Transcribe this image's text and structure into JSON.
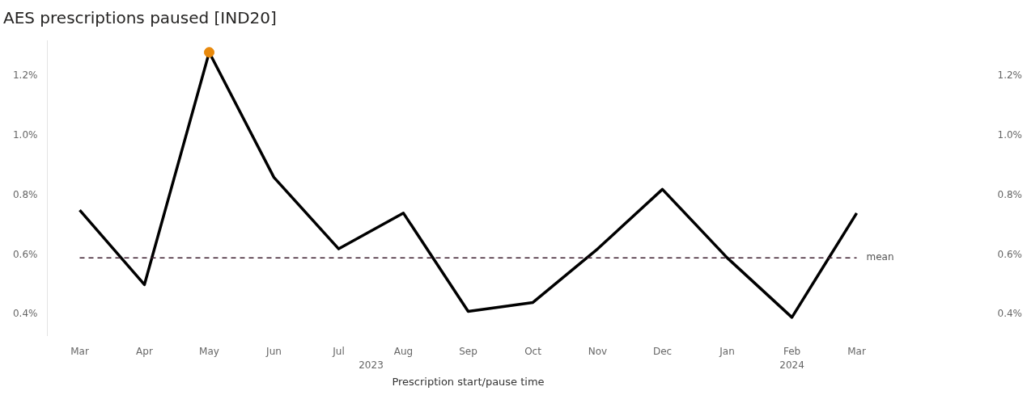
{
  "chart_data": {
    "type": "line",
    "title": "AES prescriptions paused [IND20]",
    "xlabel": "Prescription start/pause time",
    "categories": [
      "Mar",
      "Apr",
      "May",
      "Jun",
      "Jul",
      "Aug",
      "Sep",
      "Oct",
      "Nov",
      "Dec",
      "Jan",
      "Feb",
      "Mar"
    ],
    "series": [
      {
        "type": "line",
        "color": "#000000",
        "marker": "none",
        "values": [
          0.75,
          0.5,
          1.28,
          0.86,
          0.62,
          0.74,
          0.41,
          0.44,
          0.62,
          0.82,
          0.59,
          0.39,
          0.74
        ]
      },
      {
        "type": "scatter",
        "color": "#e8890c",
        "marker": "circle",
        "x": [
          "May"
        ],
        "values": [
          1.28
        ]
      }
    ],
    "ylim": [
      0.33,
      1.32
    ],
    "yticks": [
      {
        "value": 0.4,
        "label": "0.4%"
      },
      {
        "value": 0.6,
        "label": "0.6%"
      },
      {
        "value": 0.8,
        "label": "0.8%"
      },
      {
        "value": 1.0,
        "label": "1.0%"
      },
      {
        "value": 1.2,
        "label": "1.2%"
      }
    ],
    "ref_lines": [
      {
        "axis": "y",
        "value": 0.59,
        "label": "mean",
        "color": "#3c1e2e",
        "line_style": "dashed"
      }
    ],
    "annotations": [
      "2023",
      "2024"
    ],
    "grid": false,
    "legend": false
  }
}
